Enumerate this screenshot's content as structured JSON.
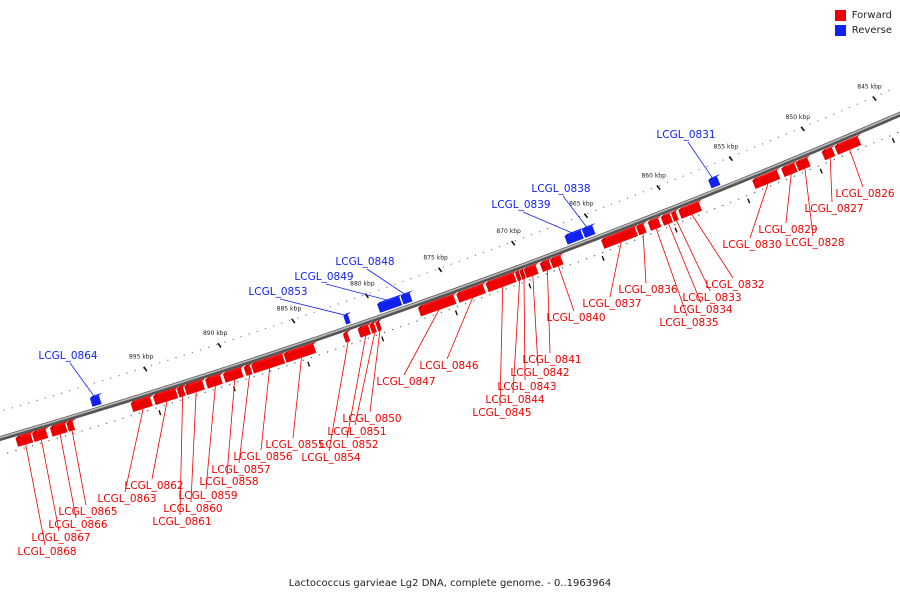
{
  "colors": {
    "forward": "#ee0000",
    "reverse": "#1122ee",
    "backbone": "#777777"
  },
  "legend": [
    {
      "label": "Forward",
      "color": "#ee0000"
    },
    {
      "label": "Reverse",
      "color": "#1122ee"
    }
  ],
  "caption": "Lactococcus garvieae Lg2 DNA, complete genome. - 0..1963964",
  "ticks": [
    {
      "kbp": 845,
      "label": "845 kbp"
    },
    {
      "kbp": 850,
      "label": "850 kbp"
    },
    {
      "kbp": 855,
      "label": "855 kbp"
    },
    {
      "kbp": 860,
      "label": "860 kbp"
    },
    {
      "kbp": 865,
      "label": "865 kbp"
    },
    {
      "kbp": 870,
      "label": "870 kbp"
    },
    {
      "kbp": 875,
      "label": "875 kbp"
    },
    {
      "kbp": 880,
      "label": "880 kbp"
    },
    {
      "kbp": 885,
      "label": "885 kbp"
    },
    {
      "kbp": 890,
      "label": "890 kbp"
    },
    {
      "kbp": 895,
      "label": "895 kbp"
    }
  ],
  "genes": [
    {
      "id": "LCGL_0826",
      "strand": "forward",
      "start": 847.0,
      "end": 848.6
    },
    {
      "id": "LCGL_0827",
      "strand": "forward",
      "start": 848.8,
      "end": 849.5
    },
    {
      "id": "LCGL_0828",
      "strand": "forward",
      "start": 850.5,
      "end": 851.3
    },
    {
      "id": "LCGL_0829",
      "strand": "forward",
      "start": 851.4,
      "end": 852.3
    },
    {
      "id": "LCGL_0830",
      "strand": "forward",
      "start": 852.6,
      "end": 854.3
    },
    {
      "id": "LCGL_0831",
      "strand": "reverse",
      "start": 856.3,
      "end": 856.9
    },
    {
      "id": "LCGL_0832",
      "strand": "forward",
      "start": 858.0,
      "end": 859.4
    },
    {
      "id": "LCGL_0833",
      "strand": "forward",
      "start": 859.6,
      "end": 859.9
    },
    {
      "id": "LCGL_0834",
      "strand": "forward",
      "start": 860.0,
      "end": 860.6
    },
    {
      "id": "LCGL_0835",
      "strand": "forward",
      "start": 860.8,
      "end": 861.5
    },
    {
      "id": "LCGL_0836",
      "strand": "forward",
      "start": 861.8,
      "end": 862.3
    },
    {
      "id": "LCGL_0837",
      "strand": "forward",
      "start": 862.4,
      "end": 864.7
    },
    {
      "id": "LCGL_0838",
      "strand": "reverse",
      "start": 864.9,
      "end": 865.6
    },
    {
      "id": "LCGL_0839",
      "strand": "reverse",
      "start": 865.7,
      "end": 866.8
    },
    {
      "id": "LCGL_0840",
      "strand": "forward",
      "start": 867.5,
      "end": 868.2
    },
    {
      "id": "LCGL_0841",
      "strand": "forward",
      "start": 868.3,
      "end": 868.9
    },
    {
      "id": "LCGL_0842",
      "strand": "forward",
      "start": 869.2,
      "end": 870.0
    },
    {
      "id": "LCGL_0843",
      "strand": "forward",
      "start": 870.1,
      "end": 870.3
    },
    {
      "id": "LCGL_0844",
      "strand": "forward",
      "start": 870.4,
      "end": 870.6
    },
    {
      "id": "LCGL_0845",
      "strand": "forward",
      "start": 870.7,
      "end": 872.6
    },
    {
      "id": "LCGL_0846",
      "strand": "forward",
      "start": 872.8,
      "end": 874.6
    },
    {
      "id": "LCGL_0847",
      "strand": "forward",
      "start": 874.8,
      "end": 877.2
    },
    {
      "id": "LCGL_0848",
      "strand": "reverse",
      "start": 877.4,
      "end": 878.0
    },
    {
      "id": "LCGL_0849",
      "strand": "reverse",
      "start": 878.1,
      "end": 879.6
    },
    {
      "id": "LCGL_0850",
      "strand": "forward",
      "start": 879.9,
      "end": 880.1
    },
    {
      "id": "LCGL_0851",
      "strand": "forward",
      "start": 880.2,
      "end": 880.5
    },
    {
      "id": "LCGL_0852",
      "strand": "forward",
      "start": 880.6,
      "end": 881.3
    },
    {
      "id": "LCGL_0853",
      "strand": "reverse",
      "start": 881.6,
      "end": 881.9
    },
    {
      "id": "LCGL_0854",
      "strand": "forward",
      "start": 882.0,
      "end": 882.3
    },
    {
      "id": "LCGL_0855",
      "strand": "forward",
      "start": 884.3,
      "end": 886.3
    },
    {
      "id": "LCGL_0856",
      "strand": "forward",
      "start": 886.4,
      "end": 888.5
    },
    {
      "id": "LCGL_0857",
      "strand": "forward",
      "start": 888.6,
      "end": 889.0
    },
    {
      "id": "LCGL_0858",
      "strand": "forward",
      "start": 889.2,
      "end": 890.4
    },
    {
      "id": "LCGL_0859",
      "strand": "forward",
      "start": 890.6,
      "end": 891.6
    },
    {
      "id": "LCGL_0860",
      "strand": "forward",
      "start": 891.8,
      "end": 893.0
    },
    {
      "id": "LCGL_0861",
      "strand": "forward",
      "start": 893.1,
      "end": 893.5
    },
    {
      "id": "LCGL_0862",
      "strand": "forward",
      "start": 893.6,
      "end": 895.1
    },
    {
      "id": "LCGL_0863",
      "strand": "forward",
      "start": 895.3,
      "end": 896.6
    },
    {
      "id": "LCGL_0864",
      "strand": "reverse",
      "start": 898.4,
      "end": 899.0
    },
    {
      "id": "LCGL_0865",
      "strand": "forward",
      "start": 900.5,
      "end": 900.9
    },
    {
      "id": "LCGL_0866",
      "strand": "forward",
      "start": 901.0,
      "end": 902.0
    },
    {
      "id": "LCGL_0867",
      "strand": "forward",
      "start": 902.3,
      "end": 903.2
    },
    {
      "id": "LCGL_0868",
      "strand": "forward",
      "start": 903.3,
      "end": 904.3
    }
  ]
}
